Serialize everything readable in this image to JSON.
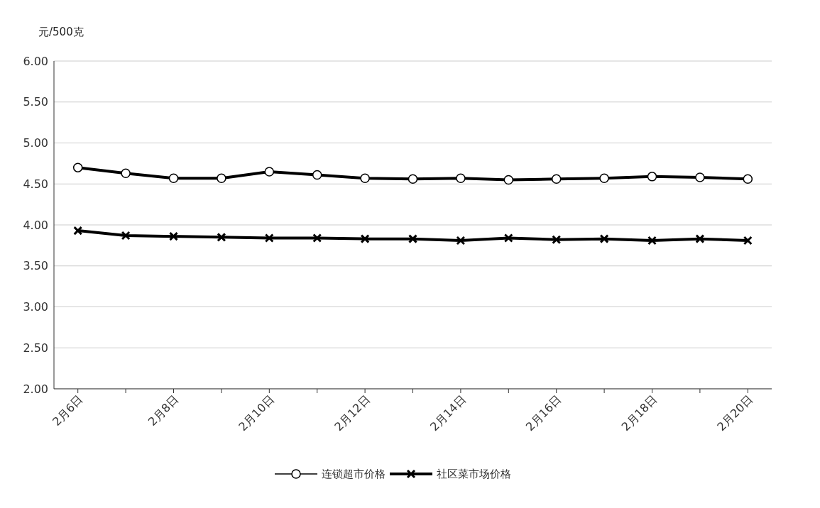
{
  "chart_data": {
    "type": "line",
    "ylabel": "元/500克",
    "categories": [
      "2月6日",
      null,
      "2月8日",
      null,
      "2月10日",
      null,
      "2月12日",
      null,
      "2月14日",
      null,
      "2月16日",
      null,
      "2月18日",
      null,
      "2月20日"
    ],
    "series": [
      {
        "name": "连锁超市价格",
        "color": "#000000",
        "marker": "circle",
        "values": [
          4.7,
          4.63,
          4.57,
          4.57,
          4.65,
          4.61,
          4.57,
          4.56,
          4.57,
          4.55,
          4.56,
          4.57,
          4.59,
          4.58,
          4.56
        ]
      },
      {
        "name": "社区菜市场价格",
        "color": "#000000",
        "marker": "cross",
        "values": [
          3.93,
          3.87,
          3.86,
          3.85,
          3.84,
          3.84,
          3.83,
          3.83,
          3.81,
          3.84,
          3.82,
          3.83,
          3.81,
          3.83,
          3.81
        ]
      }
    ],
    "ylim": [
      2,
      6
    ],
    "yticks": [
      {
        "value": 2,
        "label": "2.00"
      },
      {
        "value": 2.5,
        "label": "2.50"
      },
      {
        "value": 3,
        "label": "3.00"
      },
      {
        "value": 3.5,
        "label": "3.50"
      },
      {
        "value": 4,
        "label": "4.00"
      },
      {
        "value": 4.5,
        "label": "4.50"
      },
      {
        "value": 5,
        "label": "5.00"
      },
      {
        "value": 5.5,
        "label": "5.50"
      },
      {
        "value": 6,
        "label": "6.00"
      }
    ],
    "grid": "y",
    "legend": "bottom",
    "line_style": "solid"
  }
}
